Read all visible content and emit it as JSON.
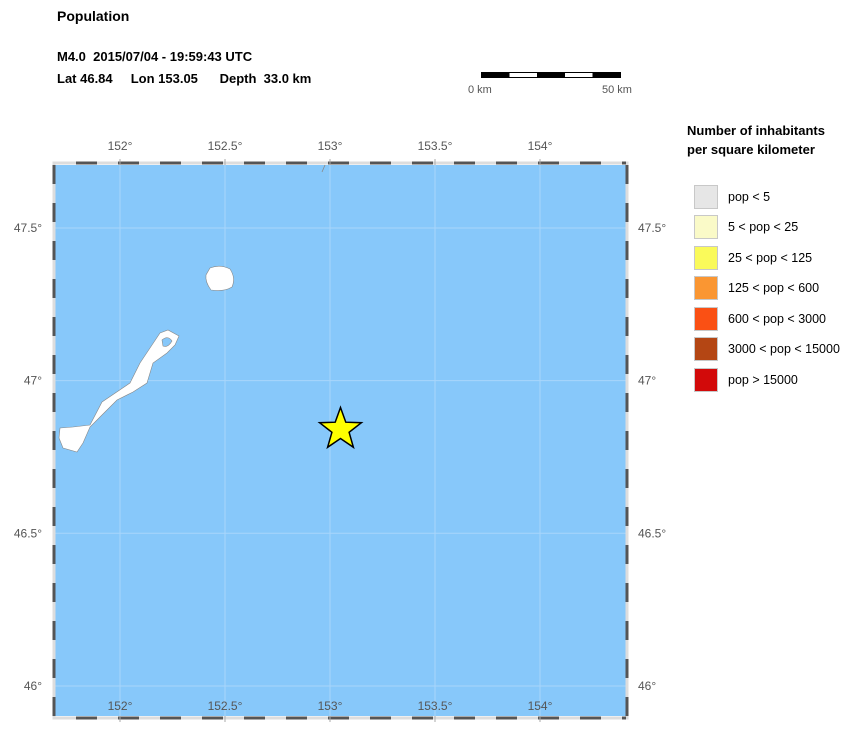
{
  "header": {
    "title": "Population",
    "event_line": "M4.0  2015/07/04 - 19:59:43 UTC",
    "location_line": "Lat 46.84     Lon 153.05      Depth  33.0 km"
  },
  "scale_bar": {
    "start_label": "0 km",
    "end_label": "50 km"
  },
  "map": {
    "lon_ticks": [
      "152°",
      "152.5°",
      "153°",
      "153.5°",
      "154°"
    ],
    "lat_ticks": [
      "47.5°",
      "47°",
      "46.5°",
      "46°"
    ],
    "epicenter": {
      "lat": 46.84,
      "lon": 153.05,
      "icon": "star-icon",
      "color": "#ffff00"
    },
    "water_color": "#87c8fa",
    "land_color": "#ffffff"
  },
  "legend": {
    "title_line1": "Number of inhabitants",
    "title_line2": "per square kilometer",
    "items": [
      {
        "label": "pop < 5",
        "color": "#e6e6e6"
      },
      {
        "label": "5 < pop < 25",
        "color": "#fafac8"
      },
      {
        "label": "25 < pop < 125",
        "color": "#fafa5a"
      },
      {
        "label": "125 < pop < 600",
        "color": "#fa9632"
      },
      {
        "label": "600 < pop < 3000",
        "color": "#fa5014"
      },
      {
        "label": "3000 < pop < 15000",
        "color": "#b44614"
      },
      {
        "label": "pop > 15000",
        "color": "#d20a0a"
      }
    ]
  }
}
